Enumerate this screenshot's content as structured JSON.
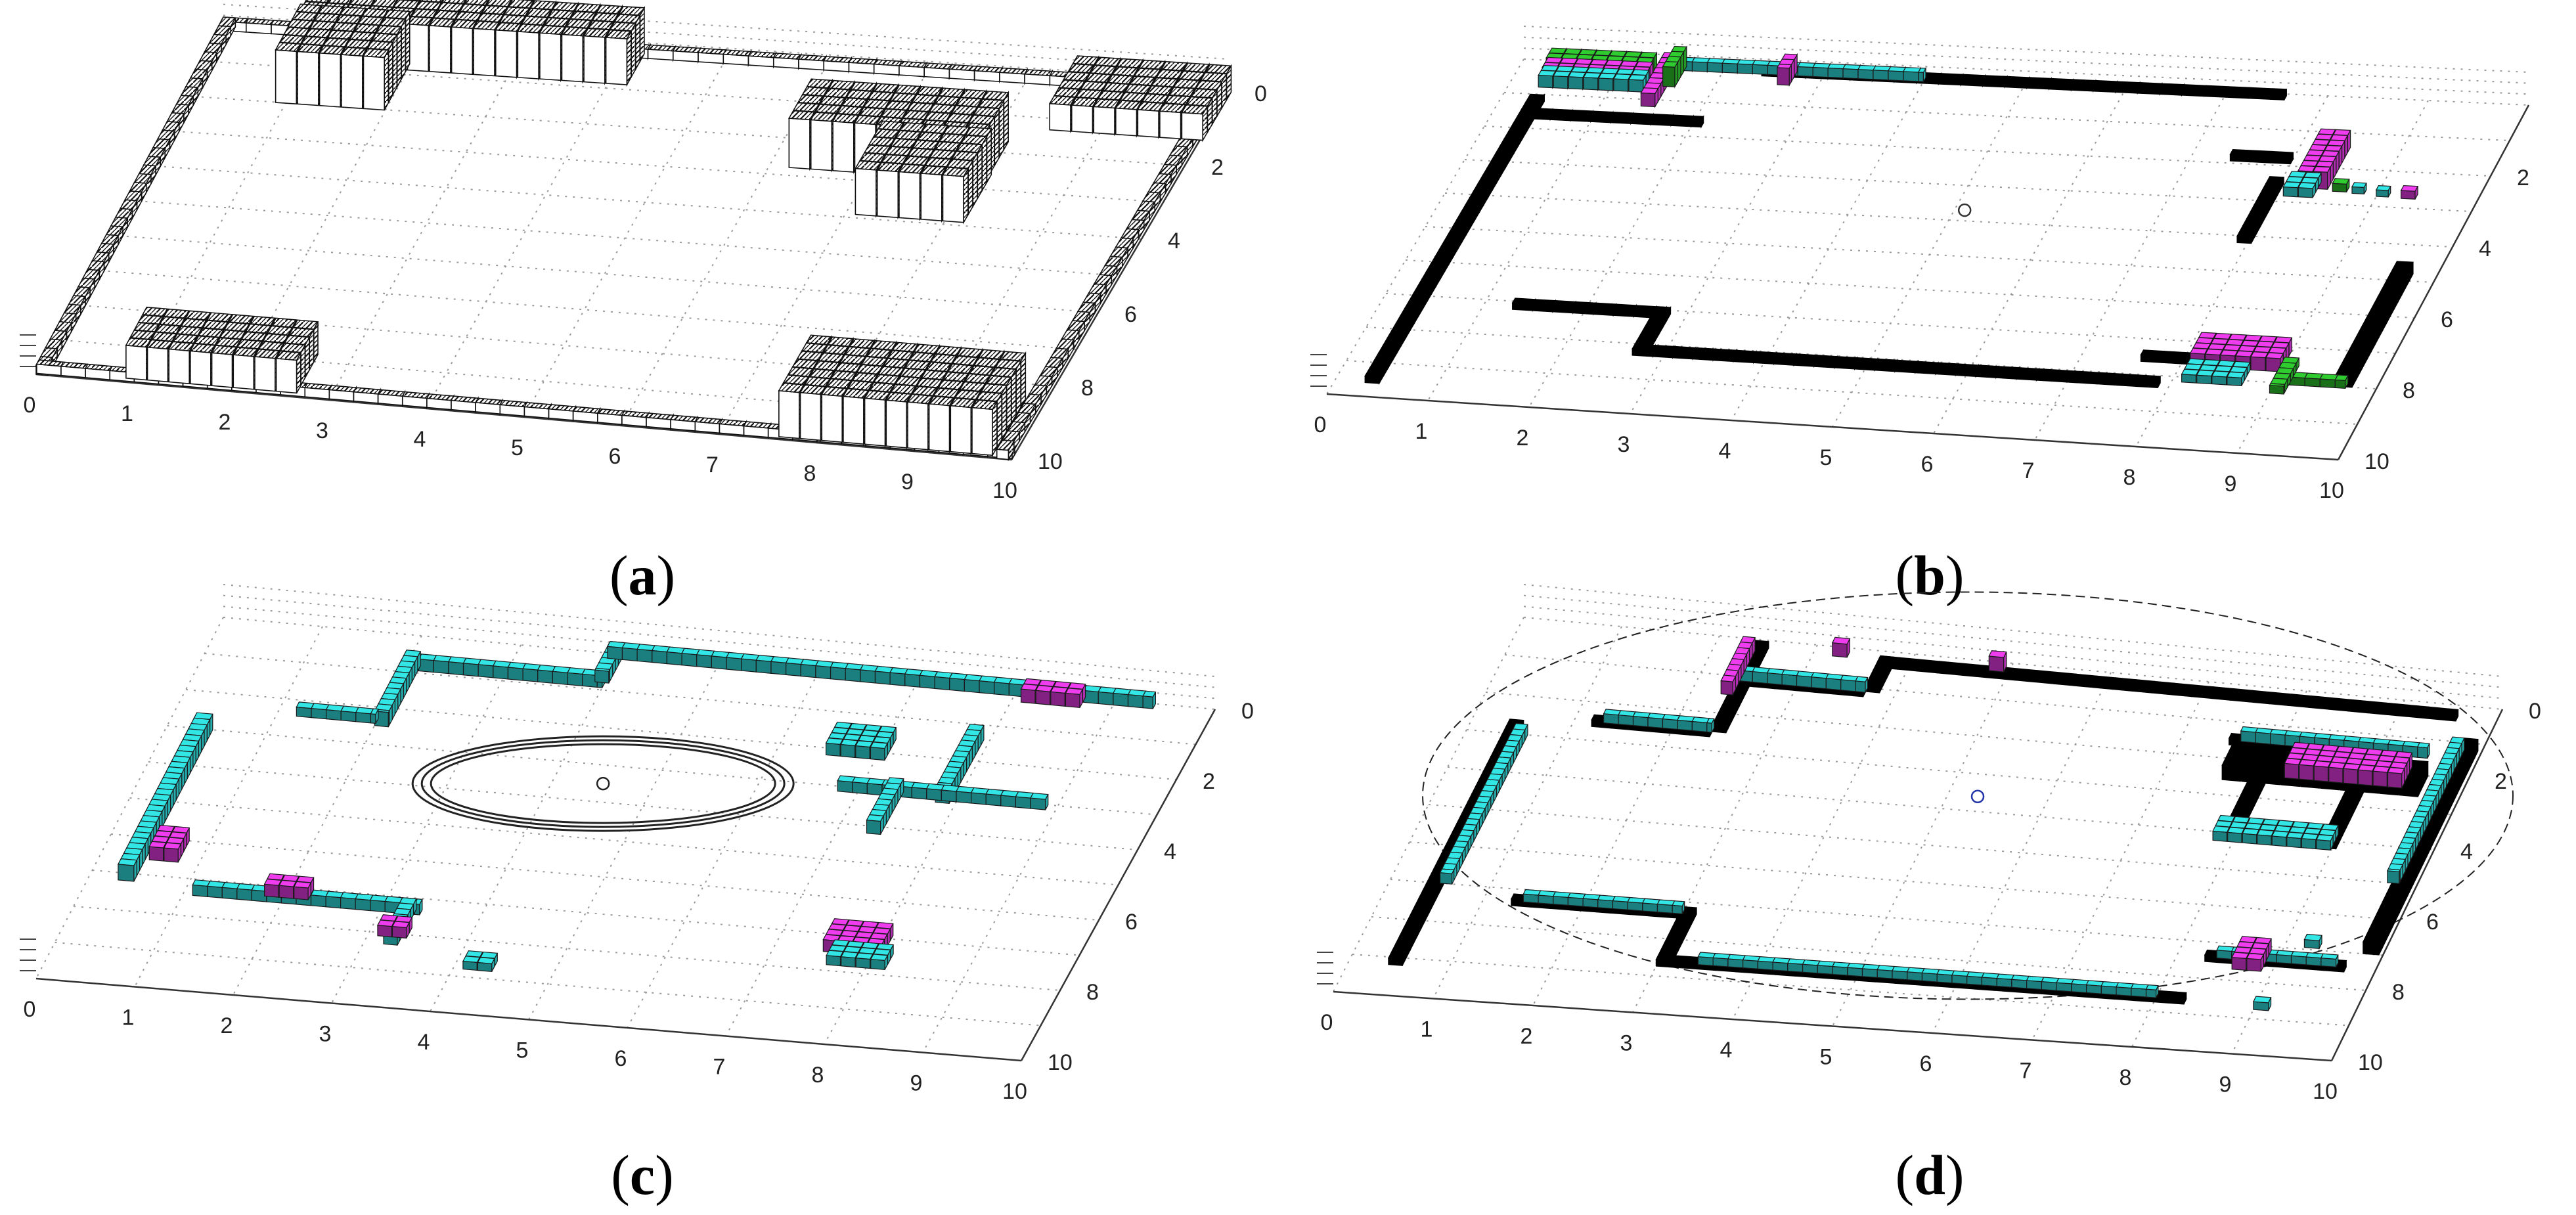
{
  "figure": {
    "panels": [
      {
        "id": "a",
        "caption_open": "(",
        "caption_letter": "a",
        "caption_close": ")",
        "x_ticks": [
          "0",
          "1",
          "2",
          "3",
          "4",
          "5",
          "6",
          "7",
          "8",
          "9",
          "10"
        ],
        "y_ticks": [
          "0",
          "2",
          "4",
          "6",
          "8",
          "10"
        ],
        "render_style": "white boxes with black hatched outlines",
        "has_ellipse": false,
        "has_center_marker": false
      },
      {
        "id": "b",
        "caption_open": "(",
        "caption_letter": "b",
        "caption_close": ")",
        "x_ticks": [
          "0",
          "1",
          "2",
          "3",
          "4",
          "5",
          "6",
          "7",
          "8",
          "9",
          "10"
        ],
        "y_ticks": [
          "2",
          "4",
          "6",
          "8",
          "10"
        ],
        "render_style": "black walls with magenta, cyan and green voxel columns",
        "has_ellipse": false,
        "has_center_marker": true
      },
      {
        "id": "c",
        "caption_open": "(",
        "caption_letter": "c",
        "caption_close": ")",
        "x_ticks": [
          "0",
          "1",
          "2",
          "3",
          "4",
          "5",
          "6",
          "7",
          "8",
          "9",
          "10"
        ],
        "y_ticks": [
          "0",
          "2",
          "4",
          "6",
          "8",
          "10"
        ],
        "render_style": "cyan voxel walls with magenta patches and sensor range ellipse",
        "has_ellipse": true,
        "has_center_marker": true
      },
      {
        "id": "d",
        "caption_open": "(",
        "caption_letter": "d",
        "caption_close": ")",
        "x_ticks": [
          "0",
          "1",
          "2",
          "3",
          "4",
          "5",
          "6",
          "7",
          "8",
          "9",
          "10"
        ],
        "y_ticks": [
          "0",
          "2",
          "4",
          "6",
          "8",
          "10"
        ],
        "render_style": "black walls topped with cyan and magenta voxels, large dashed range ellipse",
        "has_ellipse": true,
        "has_center_marker": true
      }
    ],
    "colors": {
      "wall": "#000000",
      "cyan": "#33e6e6",
      "magenta": "#ee3cee",
      "green": "#2ecc2e",
      "grid": "#9a9a9a",
      "outline_box": "#111111",
      "marker_blue": "#2233aa"
    }
  }
}
